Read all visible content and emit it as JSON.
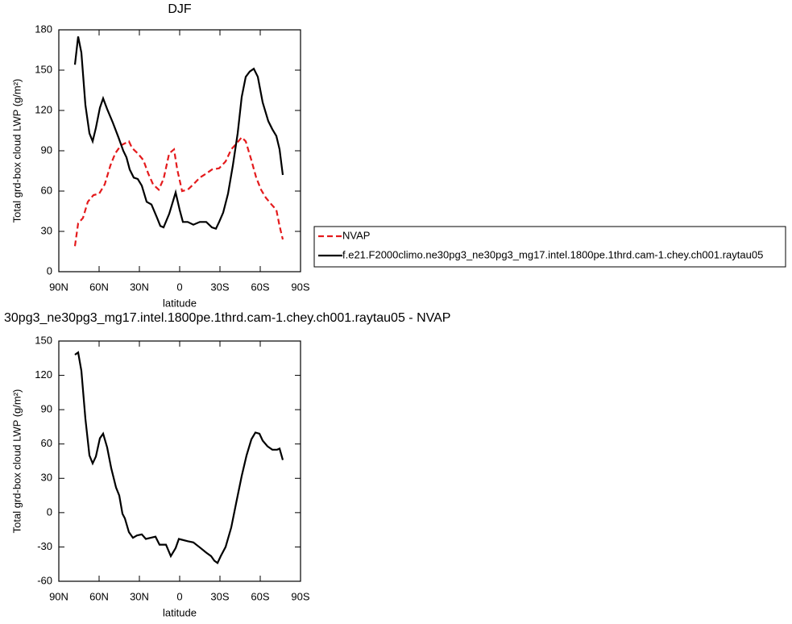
{
  "chart_data": [
    {
      "type": "line",
      "title": "DJF",
      "x_label": "latitude",
      "y_label": "Total grd-box cloud LWP (g/m²)",
      "xlim": [
        90,
        -90
      ],
      "xticks": [
        {
          "value": 90,
          "label": "90N"
        },
        {
          "value": 60,
          "label": "60N"
        },
        {
          "value": 30,
          "label": "30N"
        },
        0,
        {
          "value": -30,
          "label": "30S"
        },
        {
          "value": -60,
          "label": "60S"
        },
        {
          "value": -90,
          "label": "90S"
        }
      ],
      "ylim": [
        0,
        180
      ],
      "yticks": [
        0,
        30,
        60,
        90,
        120,
        150,
        180
      ],
      "legend": "right",
      "series": [
        {
          "name": "NVAP",
          "color": "#e41a1c",
          "style": "dashed",
          "x": [
            78,
            75.6,
            72,
            68.4,
            64.2,
            60,
            55.8,
            51.6,
            48,
            43.8,
            37.8,
            35.4,
            31.2,
            27,
            23.4,
            19.8,
            15.6,
            12,
            7.8,
            4.2,
            1.8,
            -1.8,
            -6,
            -10.2,
            -15,
            -19.8,
            -24,
            -29.4,
            -34.2,
            -38.4,
            -42,
            -46.2,
            -49.2,
            -53.4,
            -57,
            -60.6,
            -64.2,
            -68.4,
            -72,
            -74.4,
            -76.8
          ],
          "values": [
            19,
            36,
            40,
            52,
            57,
            58,
            65,
            79,
            88,
            94,
            97,
            92,
            88,
            83,
            73,
            65,
            61,
            69,
            88,
            91,
            76,
            60,
            61,
            65,
            70,
            73,
            76,
            77,
            82,
            91,
            95,
            100,
            97,
            83,
            70,
            61,
            55,
            50,
            46,
            34,
            24
          ]
        },
        {
          "name": "f.e21.F2000climo.ne30pg3_ne30pg3_mg17.intel.1800pe.1thrd.cam-1.chey.ch001.raytau05",
          "color": "#000000",
          "style": "solid",
          "x": [
            78,
            75.6,
            73.2,
            70.2,
            67.2,
            64.8,
            62.4,
            59.4,
            57,
            54,
            49.8,
            45.6,
            42,
            39.6,
            37.2,
            34.2,
            31.2,
            28.2,
            24.6,
            21,
            16.8,
            14.4,
            12,
            7.8,
            3,
            0,
            -2.4,
            -6,
            -10.2,
            -15,
            -19.8,
            -24,
            -27,
            -29.4,
            -32.4,
            -36,
            -39.6,
            -43.2,
            -46.2,
            -49.2,
            -52.2,
            -55.2,
            -58.2,
            -61.8,
            -66,
            -69,
            -72,
            -74.4,
            -76.8
          ],
          "values": [
            154,
            175,
            163,
            124,
            103,
            97,
            107,
            122,
            129,
            121,
            111,
            100,
            90,
            85,
            76,
            70,
            69,
            64,
            52,
            50,
            40,
            34,
            33,
            43,
            59,
            46,
            37,
            37,
            35,
            37,
            37,
            33,
            32,
            37,
            44,
            58,
            79,
            103,
            130,
            145,
            149,
            151,
            145,
            126,
            112,
            106,
            101,
            91,
            72
          ]
        }
      ]
    },
    {
      "type": "line",
      "title": "30pg3_ne30pg3_mg17.intel.1800pe.1thrd.cam-1.chey.ch001.raytau05 - NVAP",
      "x_label": "latitude",
      "y_label": "Total grd-box cloud LWP (g/m²)",
      "xlim": [
        90,
        -90
      ],
      "xticks": [
        {
          "value": 90,
          "label": "90N"
        },
        {
          "value": 60,
          "label": "60N"
        },
        {
          "value": 30,
          "label": "30N"
        },
        0,
        {
          "value": -30,
          "label": "30S"
        },
        {
          "value": -60,
          "label": "60S"
        },
        {
          "value": -90,
          "label": "90S"
        }
      ],
      "ylim": [
        -60,
        150
      ],
      "yticks": [
        -60,
        -30,
        0,
        30,
        60,
        90,
        120,
        150
      ],
      "series": [
        {
          "color": "#000000",
          "style": "solid",
          "x": [
            78,
            75.6,
            73.2,
            70.2,
            67.2,
            64.8,
            62.4,
            59.4,
            57,
            54,
            51,
            47.4,
            45,
            42.6,
            40.8,
            37.8,
            34.8,
            31.8,
            28.2,
            25.2,
            21.6,
            18,
            15,
            10.2,
            6.6,
            3,
            0.6,
            -6,
            -10.2,
            -15.6,
            -19.8,
            -23.4,
            -25.8,
            -28.2,
            -30.6,
            -34.2,
            -38.4,
            -42,
            -46.2,
            -49.8,
            -53.4,
            -56.4,
            -59.4,
            -61.8,
            -65.4,
            -69,
            -72.6,
            -74.4,
            -76.8
          ],
          "values": [
            138,
            140,
            124,
            82,
            50,
            43,
            49,
            65,
            69,
            57,
            39,
            22,
            15,
            -1,
            -5,
            -17,
            -22,
            -20,
            -19,
            -23,
            -22,
            -21,
            -28,
            -28,
            -38,
            -31,
            -23,
            -25,
            -26,
            -31,
            -35,
            -38,
            -42,
            -44,
            -38,
            -30,
            -13,
            8,
            32,
            50,
            64,
            70,
            69,
            63,
            58,
            55,
            55,
            56,
            46
          ]
        }
      ]
    }
  ]
}
